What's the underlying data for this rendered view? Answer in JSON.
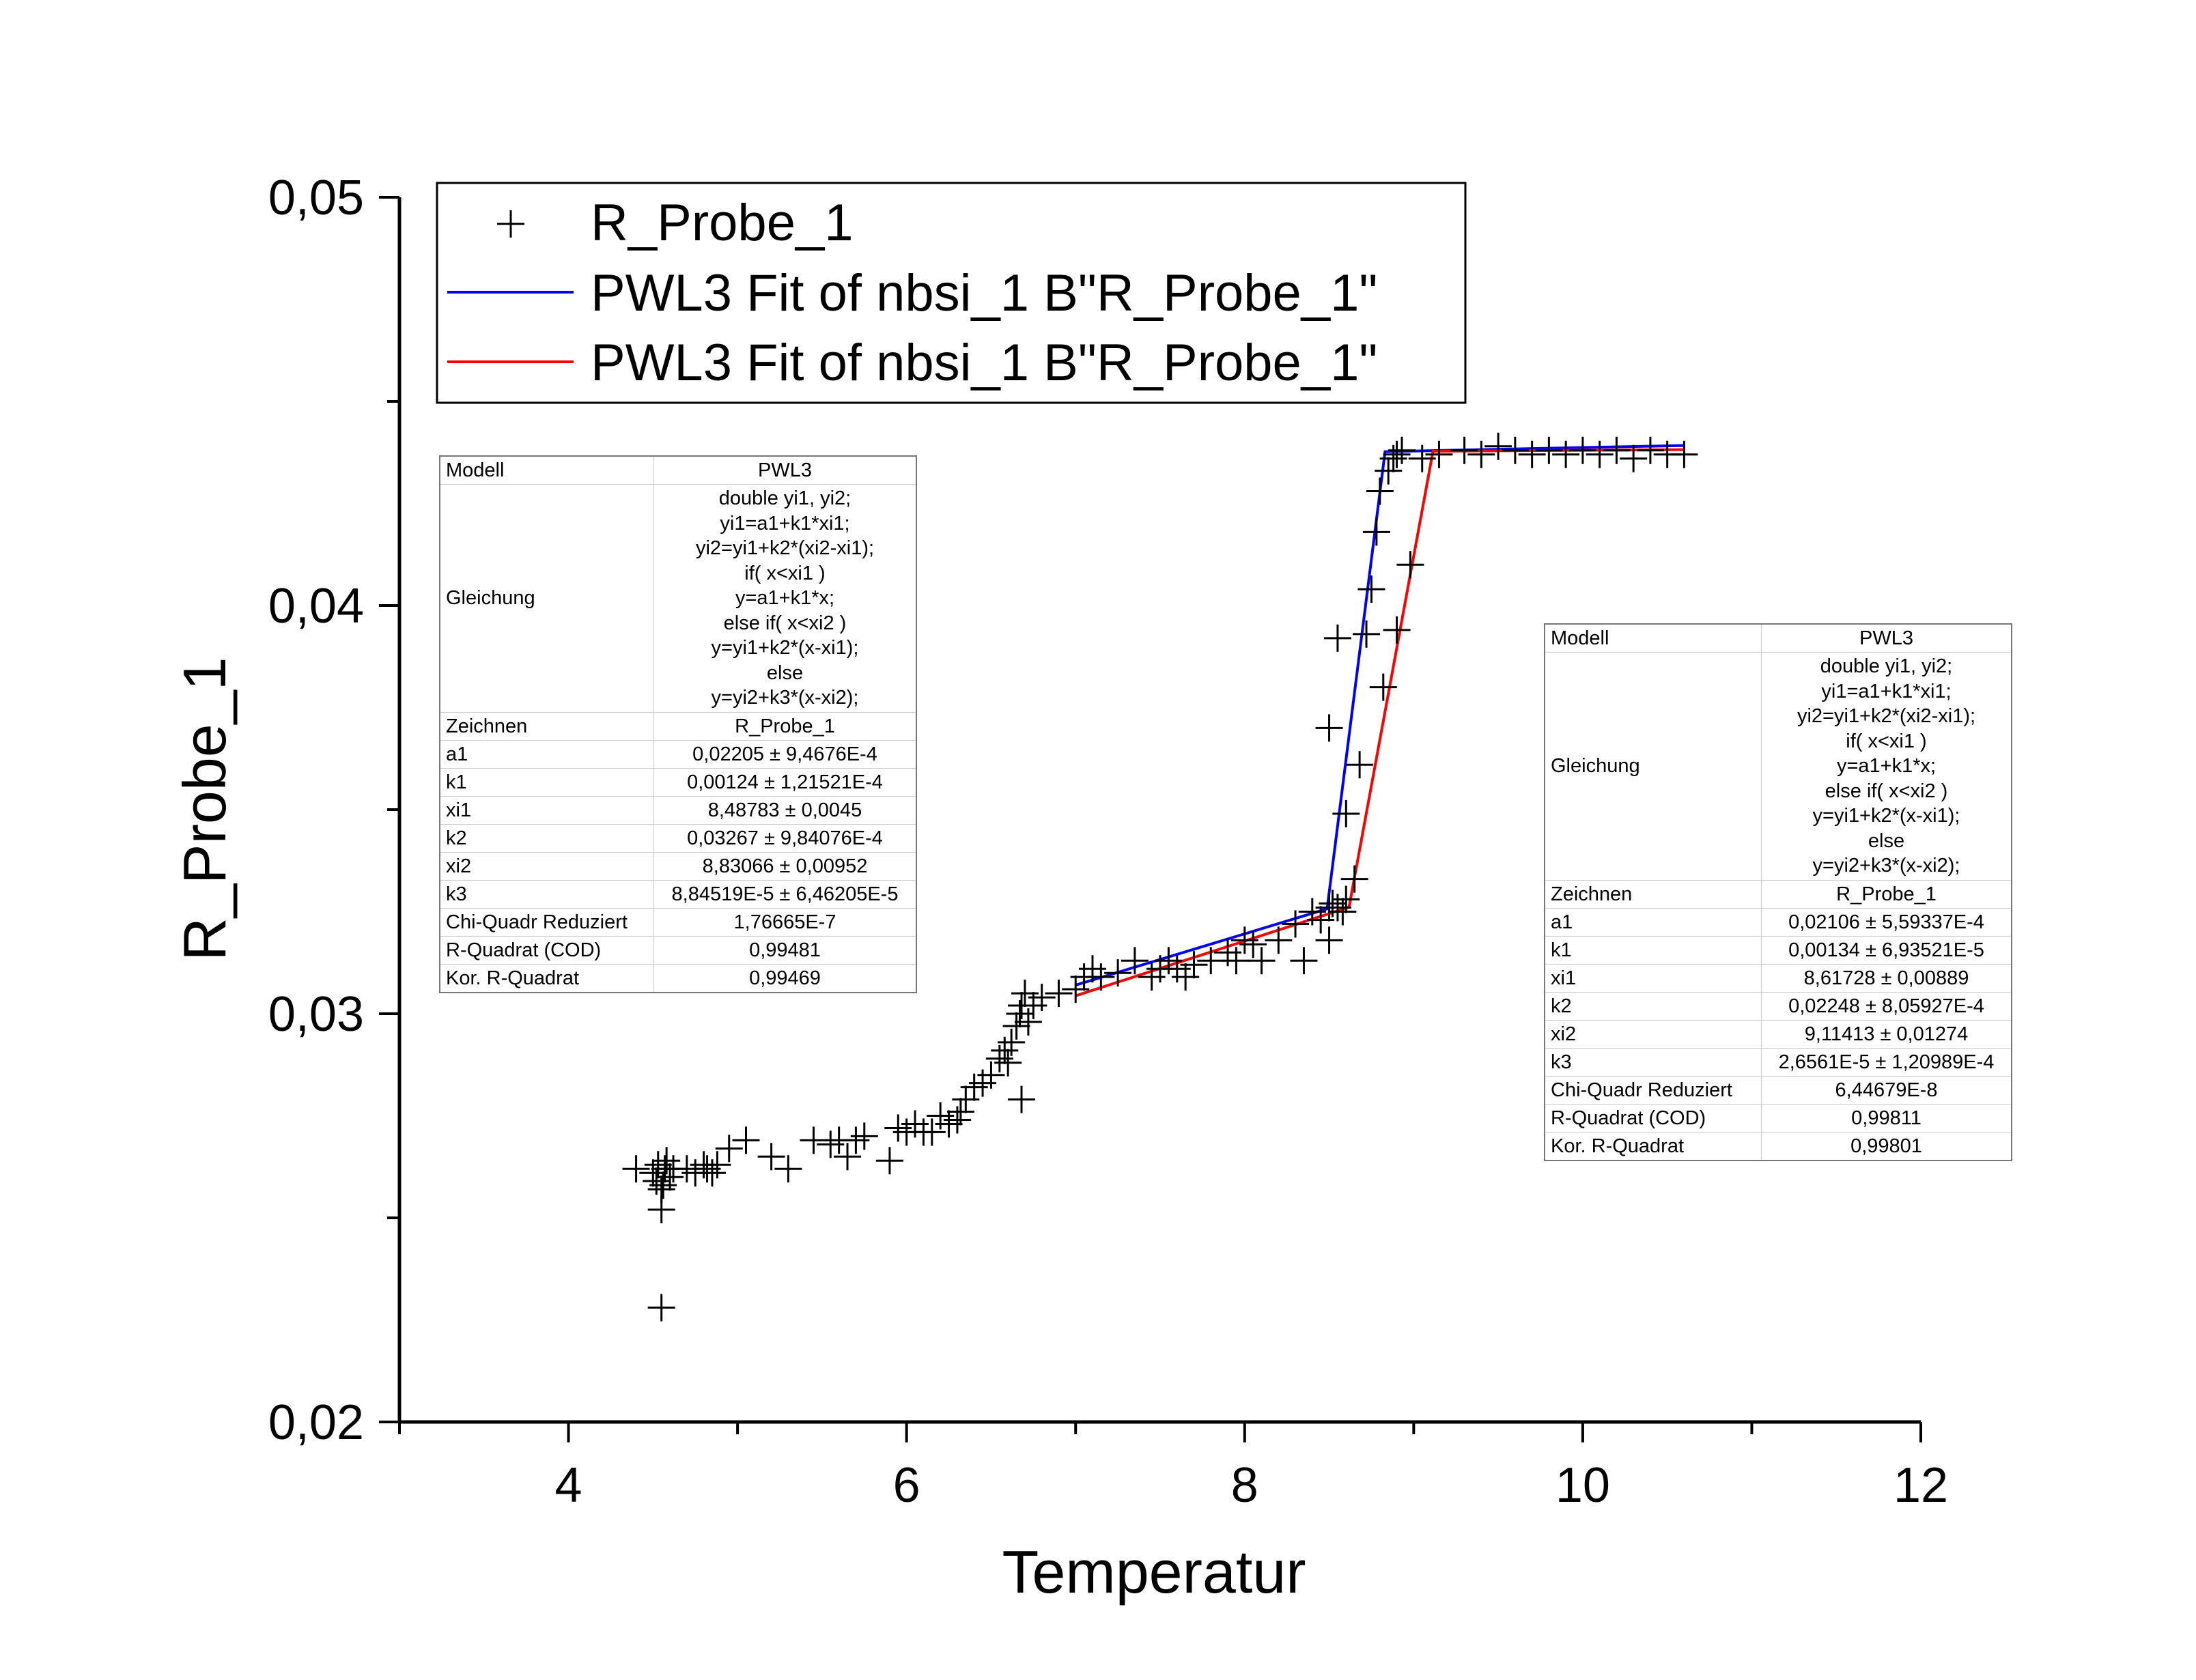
{
  "chart_data": {
    "type": "scatter",
    "xlabel": "Temperatur",
    "ylabel": "R_Probe_1",
    "xlim": [
      3,
      12
    ],
    "ylim": [
      0.02,
      0.05
    ],
    "x_ticks": [
      "4",
      "6",
      "8",
      "10",
      "12"
    ],
    "y_ticks": [
      "0,02",
      "0,03",
      "0,04",
      "0,05"
    ],
    "legend": {
      "placement": "top",
      "entries": [
        {
          "label": "R_Probe_1",
          "marker": "+",
          "color": "#000000"
        },
        {
          "label": "PWL3 Fit of nbsi_1 B\"R_Probe_1\"",
          "color": "#0000ff"
        },
        {
          "label": "PWL3 Fit of nbsi_1 B\"R_Probe_1\"",
          "color": "#ff0000"
        }
      ]
    },
    "series": [
      {
        "name": "R_Probe_1",
        "color": "#000000",
        "marker": "+",
        "points": [
          [
            4.4,
            0.0262
          ],
          [
            4.5,
            0.0261
          ],
          [
            4.52,
            0.0259
          ],
          [
            4.53,
            0.0263
          ],
          [
            4.55,
            0.0257
          ],
          [
            4.56,
            0.0258
          ],
          [
            4.57,
            0.0262
          ],
          [
            4.58,
            0.0264
          ],
          [
            4.6,
            0.026
          ],
          [
            4.62,
            0.0262
          ],
          [
            4.55,
            0.0252
          ],
          [
            4.55,
            0.0228
          ],
          [
            4.7,
            0.0262
          ],
          [
            4.75,
            0.0261
          ],
          [
            4.8,
            0.0263
          ],
          [
            4.82,
            0.0262
          ],
          [
            4.85,
            0.0261
          ],
          [
            4.88,
            0.0263
          ],
          [
            4.95,
            0.0267
          ],
          [
            5.05,
            0.0269
          ],
          [
            5.2,
            0.0265
          ],
          [
            5.3,
            0.0262
          ],
          [
            5.45,
            0.0269
          ],
          [
            5.55,
            0.0268
          ],
          [
            5.6,
            0.0269
          ],
          [
            5.65,
            0.0265
          ],
          [
            5.7,
            0.0269
          ],
          [
            5.75,
            0.027
          ],
          [
            5.9,
            0.0264
          ],
          [
            5.95,
            0.0272
          ],
          [
            6.0,
            0.0271
          ],
          [
            6.05,
            0.0273
          ],
          [
            6.1,
            0.0271
          ],
          [
            6.15,
            0.0271
          ],
          [
            6.2,
            0.0275
          ],
          [
            6.25,
            0.0273
          ],
          [
            6.3,
            0.0274
          ],
          [
            6.32,
            0.0276
          ],
          [
            6.35,
            0.0279
          ],
          [
            6.4,
            0.0282
          ],
          [
            6.45,
            0.0283
          ],
          [
            6.5,
            0.0285
          ],
          [
            6.55,
            0.0289
          ],
          [
            6.58,
            0.0291
          ],
          [
            6.6,
            0.0288
          ],
          [
            6.62,
            0.0293
          ],
          [
            6.65,
            0.0297
          ],
          [
            6.67,
            0.03
          ],
          [
            6.68,
            0.0302
          ],
          [
            6.7,
            0.0305
          ],
          [
            6.68,
            0.0279
          ],
          [
            6.72,
            0.0298
          ],
          [
            6.75,
            0.0302
          ],
          [
            6.8,
            0.0304
          ],
          [
            6.9,
            0.0305
          ],
          [
            7.0,
            0.0306
          ],
          [
            7.05,
            0.0309
          ],
          [
            7.1,
            0.0311
          ],
          [
            7.15,
            0.0309
          ],
          [
            7.25,
            0.031
          ],
          [
            7.35,
            0.0313
          ],
          [
            7.45,
            0.0309
          ],
          [
            7.5,
            0.0311
          ],
          [
            7.55,
            0.0313
          ],
          [
            7.6,
            0.0311
          ],
          [
            7.65,
            0.0309
          ],
          [
            7.7,
            0.0312
          ],
          [
            7.8,
            0.0313
          ],
          [
            7.9,
            0.0315
          ],
          [
            7.95,
            0.0313
          ],
          [
            8.0,
            0.0318
          ],
          [
            8.05,
            0.0317
          ],
          [
            8.1,
            0.0313
          ],
          [
            8.2,
            0.0318
          ],
          [
            8.3,
            0.0322
          ],
          [
            8.35,
            0.0313
          ],
          [
            8.4,
            0.0325
          ],
          [
            8.45,
            0.0323
          ],
          [
            8.5,
            0.0326
          ],
          [
            8.52,
            0.0327
          ],
          [
            8.55,
            0.0326
          ],
          [
            8.58,
            0.0325
          ],
          [
            8.6,
            0.0328
          ],
          [
            8.5,
            0.0318
          ],
          [
            8.6,
            0.0349
          ],
          [
            8.65,
            0.0333
          ],
          [
            8.68,
            0.0361
          ],
          [
            8.72,
            0.0393
          ],
          [
            8.75,
            0.0404
          ],
          [
            8.78,
            0.0418
          ],
          [
            8.8,
            0.0428
          ],
          [
            8.85,
            0.0433
          ],
          [
            8.88,
            0.0436
          ],
          [
            8.9,
            0.0437
          ],
          [
            8.93,
            0.0438
          ],
          [
            8.82,
            0.038
          ],
          [
            8.9,
            0.0394
          ],
          [
            8.98,
            0.041
          ],
          [
            8.55,
            0.0392
          ],
          [
            8.5,
            0.037
          ],
          [
            9.05,
            0.0436
          ],
          [
            9.15,
            0.0437
          ],
          [
            9.3,
            0.0438
          ],
          [
            9.4,
            0.0437
          ],
          [
            9.5,
            0.0439
          ],
          [
            9.6,
            0.0438
          ],
          [
            9.7,
            0.0437
          ],
          [
            9.8,
            0.0438
          ],
          [
            9.9,
            0.0437
          ],
          [
            10.0,
            0.0438
          ],
          [
            10.1,
            0.0437
          ],
          [
            10.2,
            0.0438
          ],
          [
            10.3,
            0.0436
          ],
          [
            10.4,
            0.0438
          ],
          [
            10.5,
            0.0437
          ],
          [
            10.6,
            0.0437
          ]
        ]
      },
      {
        "name": "PWL3 Fit of nbsi_1 B\"R_Probe_1\"",
        "color": "#0000ff",
        "points": [
          [
            7.0,
            0.0307
          ],
          [
            8.48783,
            0.03257
          ],
          [
            8.83066,
            0.04377
          ],
          [
            10.6,
            0.04392
          ]
        ]
      },
      {
        "name": "PWL3 Fit of nbsi_1 B\"R_Probe_1\"",
        "color": "#ff0000",
        "points": [
          [
            7.0,
            0.03044
          ],
          [
            8.61728,
            0.03261
          ],
          [
            9.11413,
            0.04378
          ],
          [
            10.6,
            0.04382
          ]
        ]
      }
    ]
  },
  "tables": [
    {
      "id": "left",
      "rows": [
        {
          "label": "Modell",
          "value": "PWL3"
        },
        {
          "label": "Gleichung",
          "lines": [
            "double yi1, yi2;",
            "yi1=a1+k1*xi1;",
            "yi2=yi1+k2*(xi2-xi1);",
            "if( x<xi1 )",
            "y=a1+k1*x;",
            "else if( x<xi2 )",
            "y=yi1+k2*(x-xi1);",
            "else",
            "y=yi2+k3*(x-xi2);"
          ]
        },
        {
          "label": "Zeichnen",
          "value": "R_Probe_1"
        },
        {
          "label": "a1",
          "value": "0,02205 ± 9,4676E-4"
        },
        {
          "label": "k1",
          "value": "0,00124 ± 1,21521E-4"
        },
        {
          "label": "xi1",
          "value": "8,48783 ± 0,0045"
        },
        {
          "label": "k2",
          "value": "0,03267 ± 9,84076E-4"
        },
        {
          "label": "xi2",
          "value": "8,83066 ± 0,00952"
        },
        {
          "label": "k3",
          "value": "8,84519E-5 ± 6,46205E-5"
        },
        {
          "label": "Chi-Quadr Reduziert",
          "value": "1,76665E-7"
        },
        {
          "label": "R-Quadrat (COD)",
          "value": "0,99481"
        },
        {
          "label": "Kor. R-Quadrat",
          "value": "0,99469"
        }
      ]
    },
    {
      "id": "right",
      "rows": [
        {
          "label": "Modell",
          "value": "PWL3"
        },
        {
          "label": "Gleichung",
          "lines": [
            "double yi1, yi2;",
            "yi1=a1+k1*xi1;",
            "yi2=yi1+k2*(xi2-xi1);",
            "if( x<xi1 )",
            "y=a1+k1*x;",
            "else if( x<xi2 )",
            "y=yi1+k2*(x-xi1);",
            "else",
            "y=yi2+k3*(x-xi2);"
          ]
        },
        {
          "label": "Zeichnen",
          "value": "R_Probe_1"
        },
        {
          "label": "a1",
          "value": "0,02106 ± 5,59337E-4"
        },
        {
          "label": "k1",
          "value": "0,00134 ± 6,93521E-5"
        },
        {
          "label": "xi1",
          "value": "8,61728 ± 0,00889"
        },
        {
          "label": "k2",
          "value": "0,02248 ± 8,05927E-4"
        },
        {
          "label": "xi2",
          "value": "9,11413 ± 0,01274"
        },
        {
          "label": "k3",
          "value": "2,6561E-5 ± 1,20989E-4"
        },
        {
          "label": "Chi-Quadr Reduziert",
          "value": "6,44679E-8"
        },
        {
          "label": "R-Quadrat (COD)",
          "value": "0,99811"
        },
        {
          "label": "Kor. R-Quadrat",
          "value": "0,99801"
        }
      ]
    }
  ]
}
